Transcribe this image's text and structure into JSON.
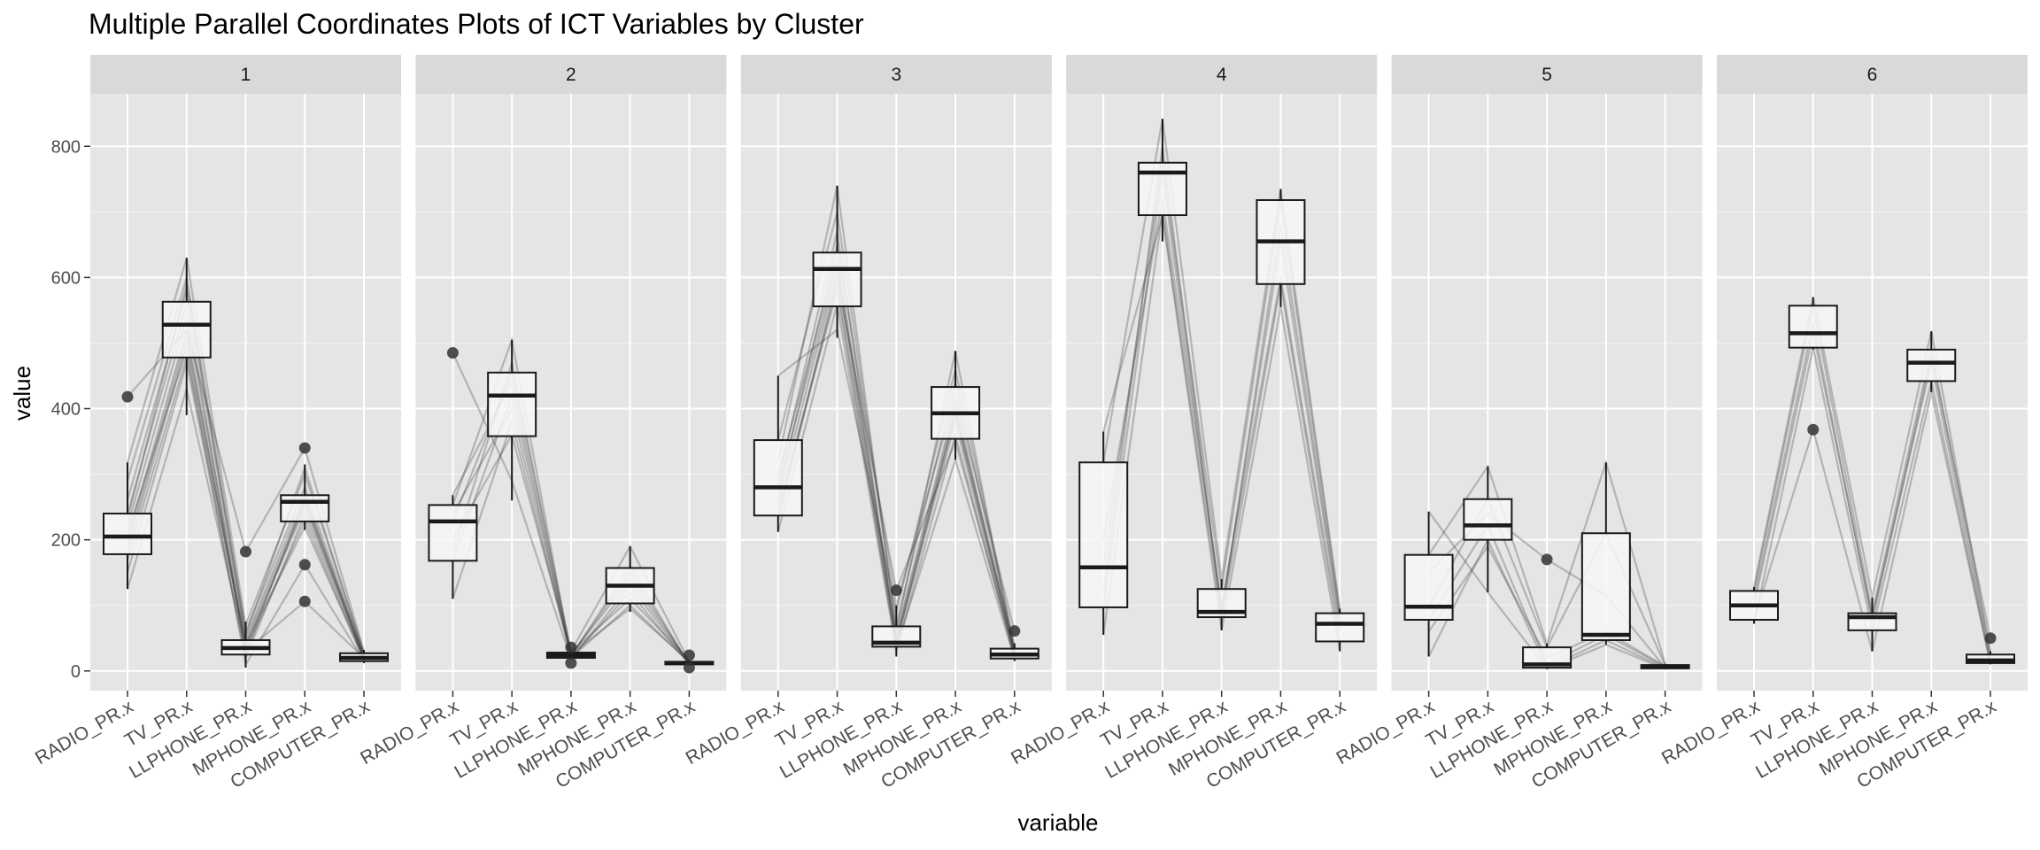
{
  "chart_data": {
    "type": "box",
    "title": "Multiple Parallel Coordinates Plots of ICT Variables by Cluster",
    "xlabel": "variable",
    "ylabel": "value",
    "ylim": [
      -30,
      880
    ],
    "yticks": [
      0,
      200,
      400,
      600,
      800
    ],
    "grid": true,
    "variables": [
      "RADIO_PR.x",
      "TV_PR.x",
      "LLPHONE_PR.x",
      "MPHONE_PR.x",
      "COMPUTER_PR.x"
    ],
    "panels": [
      {
        "label": "1",
        "boxes": [
          {
            "min": 125,
            "q1": 178,
            "median": 205,
            "q3": 240,
            "max": 318,
            "outliers": [
              418
            ]
          },
          {
            "min": 390,
            "q1": 478,
            "median": 528,
            "q3": 563,
            "max": 630,
            "outliers": []
          },
          {
            "min": 5,
            "q1": 25,
            "median": 35,
            "q3": 47,
            "max": 75,
            "outliers": [
              182
            ]
          },
          {
            "min": 215,
            "q1": 228,
            "median": 258,
            "q3": 268,
            "max": 315,
            "outliers": [
              340,
              162,
              106
            ]
          },
          {
            "min": 12,
            "q1": 15,
            "median": 20,
            "q3": 27,
            "max": 32,
            "outliers": []
          }
        ],
        "lines": [
          [
            125,
            430,
            30,
            230,
            15
          ],
          [
            150,
            470,
            20,
            240,
            18
          ],
          [
            180,
            500,
            40,
            250,
            20
          ],
          [
            200,
            520,
            35,
            255,
            22
          ],
          [
            220,
            540,
            45,
            260,
            20
          ],
          [
            240,
            560,
            25,
            265,
            25
          ],
          [
            260,
            580,
            50,
            270,
            18
          ],
          [
            290,
            600,
            60,
            280,
            24
          ],
          [
            318,
            630,
            70,
            300,
            28
          ],
          [
            418,
            520,
            182,
            340,
            30
          ],
          [
            210,
            490,
            10,
            162,
            15
          ],
          [
            190,
            510,
            30,
            106,
            20
          ],
          [
            230,
            590,
            55,
            310,
            25
          ],
          [
            170,
            480,
            40,
            220,
            18
          ]
        ]
      },
      {
        "label": "2",
        "boxes": [
          {
            "min": 110,
            "q1": 168,
            "median": 228,
            "q3": 253,
            "max": 268,
            "outliers": [
              485
            ]
          },
          {
            "min": 260,
            "q1": 358,
            "median": 420,
            "q3": 455,
            "max": 505,
            "outliers": []
          },
          {
            "min": 18,
            "q1": 20,
            "median": 24,
            "q3": 28,
            "max": 32,
            "outliers": [
              12,
              36
            ]
          },
          {
            "min": 90,
            "q1": 103,
            "median": 130,
            "q3": 157,
            "max": 190,
            "outliers": []
          },
          {
            "min": 8,
            "q1": 10,
            "median": 12,
            "q3": 14,
            "max": 16,
            "outliers": [
              5,
              24
            ]
          }
        ],
        "lines": [
          [
            110,
            380,
            20,
            120,
            10
          ],
          [
            168,
            420,
            25,
            140,
            12
          ],
          [
            228,
            455,
            30,
            190,
            14
          ],
          [
            253,
            505,
            24,
            150,
            11
          ],
          [
            268,
            440,
            20,
            100,
            13
          ],
          [
            485,
            290,
            18,
            130,
            12
          ],
          [
            200,
            360,
            28,
            110,
            16
          ],
          [
            240,
            400,
            22,
            160,
            9
          ],
          [
            180,
            470,
            26,
            95,
            15
          ]
        ]
      },
      {
        "label": "3",
        "boxes": [
          {
            "min": 212,
            "q1": 237,
            "median": 280,
            "q3": 352,
            "max": 450,
            "outliers": []
          },
          {
            "min": 508,
            "q1": 556,
            "median": 613,
            "q3": 638,
            "max": 740,
            "outliers": []
          },
          {
            "min": 22,
            "q1": 37,
            "median": 43,
            "q3": 68,
            "max": 100,
            "outliers": [
              123
            ]
          },
          {
            "min": 322,
            "q1": 354,
            "median": 393,
            "q3": 433,
            "max": 488,
            "outliers": []
          },
          {
            "min": 15,
            "q1": 19,
            "median": 25,
            "q3": 34,
            "max": 42,
            "outliers": [
              61
            ]
          }
        ],
        "lines": [
          [
            212,
            560,
            30,
            360,
            20
          ],
          [
            237,
            590,
            40,
            380,
            22
          ],
          [
            260,
            610,
            45,
            390,
            25
          ],
          [
            280,
            620,
            50,
            400,
            28
          ],
          [
            300,
            630,
            55,
            410,
            30
          ],
          [
            352,
            700,
            70,
            440,
            35
          ],
          [
            450,
            520,
            90,
            460,
            40
          ],
          [
            320,
            740,
            60,
            488,
            25
          ],
          [
            270,
            650,
            100,
            420,
            61
          ],
          [
            250,
            580,
            35,
            322,
            18
          ],
          [
            230,
            600,
            123,
            350,
            24
          ],
          [
            290,
            670,
            42,
            395,
            32
          ]
        ]
      },
      {
        "label": "4",
        "boxes": [
          {
            "min": 55,
            "q1": 97,
            "median": 158,
            "q3": 318,
            "max": 365,
            "outliers": []
          },
          {
            "min": 655,
            "q1": 695,
            "median": 760,
            "q3": 775,
            "max": 842,
            "outliers": []
          },
          {
            "min": 62,
            "q1": 82,
            "median": 90,
            "q3": 125,
            "max": 140,
            "outliers": []
          },
          {
            "min": 555,
            "q1": 590,
            "median": 655,
            "q3": 718,
            "max": 735,
            "outliers": []
          },
          {
            "min": 30,
            "q1": 45,
            "median": 72,
            "q3": 88,
            "max": 95,
            "outliers": []
          }
        ],
        "lines": [
          [
            55,
            700,
            80,
            590,
            45
          ],
          [
            97,
            760,
            90,
            655,
            72
          ],
          [
            158,
            775,
            125,
            718,
            88
          ],
          [
            318,
            842,
            140,
            735,
            95
          ],
          [
            365,
            695,
            62,
            555,
            30
          ],
          [
            200,
            720,
            100,
            600,
            60
          ],
          [
            120,
            800,
            85,
            680,
            80
          ]
        ]
      },
      {
        "label": "5",
        "boxes": [
          {
            "min": 22,
            "q1": 78,
            "median": 98,
            "q3": 177,
            "max": 243,
            "outliers": []
          },
          {
            "min": 120,
            "q1": 200,
            "median": 222,
            "q3": 262,
            "max": 312,
            "outliers": []
          },
          {
            "min": 3,
            "q1": 5,
            "median": 10,
            "q3": 36,
            "max": 42,
            "outliers": [
              170
            ]
          },
          {
            "min": 40,
            "q1": 47,
            "median": 55,
            "q3": 210,
            "max": 318,
            "outliers": []
          },
          {
            "min": 3,
            "q1": 4,
            "median": 6,
            "q3": 9,
            "max": 11,
            "outliers": []
          }
        ],
        "lines": [
          [
            22,
            200,
            5,
            47,
            4
          ],
          [
            78,
            222,
            10,
            55,
            6
          ],
          [
            98,
            262,
            36,
            210,
            9
          ],
          [
            177,
            312,
            42,
            318,
            11
          ],
          [
            243,
            120,
            3,
            40,
            3
          ],
          [
            150,
            240,
            170,
            115,
            5
          ],
          [
            60,
            190,
            20,
            60,
            7
          ]
        ]
      },
      {
        "label": "6",
        "boxes": [
          {
            "min": 72,
            "q1": 78,
            "median": 100,
            "q3": 122,
            "max": 128,
            "outliers": []
          },
          {
            "min": 490,
            "q1": 493,
            "median": 515,
            "q3": 557,
            "max": 570,
            "outliers": [
              368
            ]
          },
          {
            "min": 30,
            "q1": 62,
            "median": 82,
            "q3": 88,
            "max": 112,
            "outliers": []
          },
          {
            "min": 425,
            "q1": 442,
            "median": 470,
            "q3": 490,
            "max": 518,
            "outliers": []
          },
          {
            "min": 10,
            "q1": 12,
            "median": 16,
            "q3": 25,
            "max": 30,
            "outliers": [
              50
            ]
          }
        ],
        "lines": [
          [
            72,
            493,
            62,
            442,
            12
          ],
          [
            100,
            515,
            82,
            470,
            16
          ],
          [
            122,
            557,
            88,
            490,
            25
          ],
          [
            128,
            570,
            112,
            518,
            30
          ],
          [
            78,
            368,
            30,
            425,
            10
          ],
          [
            110,
            530,
            75,
            480,
            50
          ]
        ]
      }
    ]
  },
  "colors": {
    "panel_bg": "#e5e5e5",
    "strip_bg": "#d9d9d9",
    "grid": "#ffffff",
    "box_fill": "#f7f7f7",
    "box_stroke": "#1a1a1a",
    "line": "#333333",
    "outlier": "#333333"
  }
}
